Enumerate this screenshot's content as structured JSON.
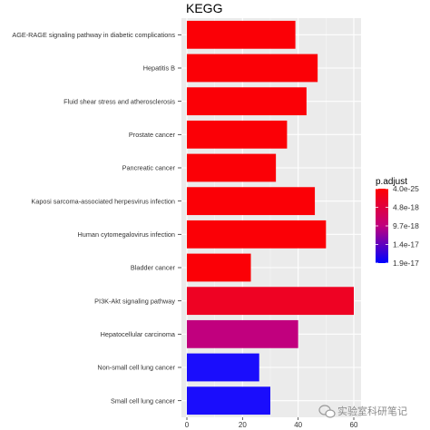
{
  "chart_data": {
    "type": "bar",
    "orientation": "horizontal",
    "title": "KEGG",
    "xlabel": "",
    "ylabel": "",
    "xlim": [
      0,
      60
    ],
    "xticks": [
      0,
      20,
      40,
      60
    ],
    "grid": true,
    "categories": [
      "AGE-RAGE signaling pathway in diabetic complications",
      "Hepatitis B",
      "Fluid shear stress and atherosclerosis",
      "Prostate cancer",
      "Pancreatic cancer",
      "Kaposi sarcoma-associated herpesvirus infection",
      "Human cytomegalovirus infection",
      "Bladder cancer",
      "PI3K-Akt signaling pathway",
      "Hepatocellular carcinoma",
      "Non-small cell lung cancer",
      "Small cell lung cancer"
    ],
    "values": [
      39,
      47,
      43,
      36,
      32,
      46,
      50,
      23,
      60,
      40,
      26,
      30
    ],
    "bar_colors": [
      "#fb0006",
      "#fb0006",
      "#fb0006",
      "#fb0006",
      "#fb0006",
      "#fb0006",
      "#fb0006",
      "#fb0006",
      "#ee0223",
      "#c1007e",
      "#1a0dfc",
      "#1a0dfc"
    ],
    "legend": {
      "title": "p.adjust",
      "labels": [
        "4.0e-25",
        "4.8e-18",
        "9.7e-18",
        "1.4e-17",
        "1.9e-17"
      ],
      "gradient": [
        "#ff0000",
        "#c0007f",
        "#0000ff"
      ],
      "placement": "right"
    }
  },
  "watermark": {
    "text": "实验室科研笔记"
  }
}
